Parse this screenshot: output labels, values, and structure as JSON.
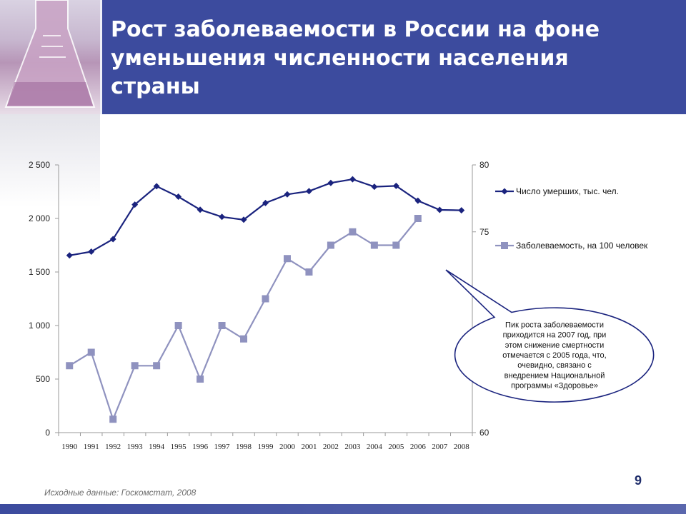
{
  "header": {
    "title_lines": [
      "Рост заболеваемости в России на фоне",
      "уменьшения численности населения",
      "страны"
    ]
  },
  "chart_data": {
    "type": "line",
    "categories": [
      "1990",
      "1991",
      "1992",
      "1993",
      "1994",
      "1995",
      "1996",
      "1997",
      "1998",
      "1999",
      "2000",
      "2001",
      "2002",
      "2003",
      "2004",
      "2005",
      "2006",
      "2007",
      "2008"
    ],
    "y_left": {
      "ticks": [
        0,
        500,
        1000,
        1500,
        2000,
        2500
      ],
      "tick_labels": [
        "0",
        "500",
        "1 000",
        "1 500",
        "2 000",
        "2 500"
      ],
      "ylim": [
        0,
        2500
      ]
    },
    "y_right": {
      "ticks": [
        60,
        75,
        80
      ],
      "tick_labels": [
        "60",
        "75",
        "80"
      ],
      "ylim": [
        60,
        80
      ]
    },
    "series": [
      {
        "name": "Число умерших, тыс. чел.",
        "axis": "left",
        "color": "#1a237e",
        "marker": "diamond",
        "values": [
          1655,
          1690,
          1807,
          2129,
          2301,
          2203,
          2082,
          2015,
          1988,
          2144,
          2225,
          2255,
          2332,
          2366,
          2296,
          2304,
          2166,
          2080,
          2076
        ]
      },
      {
        "name": "Заболеваемость, на 100 человек",
        "axis": "right",
        "color": "#8f92bf",
        "marker": "square",
        "values": [
          65,
          66,
          61,
          65,
          65,
          68,
          64,
          68,
          67,
          70,
          73,
          72,
          74,
          75,
          74,
          74,
          76,
          null,
          null
        ]
      }
    ],
    "legend_position": "right",
    "annotation": {
      "lines": [
        "Пик роста заболеваемости",
        "приходится на 2007 год, при",
        "этом снижение смертности",
        "отмечается с 2005 года, что,",
        "очевидно, связано с",
        "внедрением Национальной",
        "программы «Здоровье»"
      ]
    }
  },
  "footer": {
    "source": "Исходные данные: Госкомстат, 2008",
    "page_number": "9"
  },
  "colors": {
    "header_bg": "#3c4b9e",
    "series_dark": "#1a237e",
    "series_light": "#8f92bf",
    "callout_border": "#1a237e"
  }
}
